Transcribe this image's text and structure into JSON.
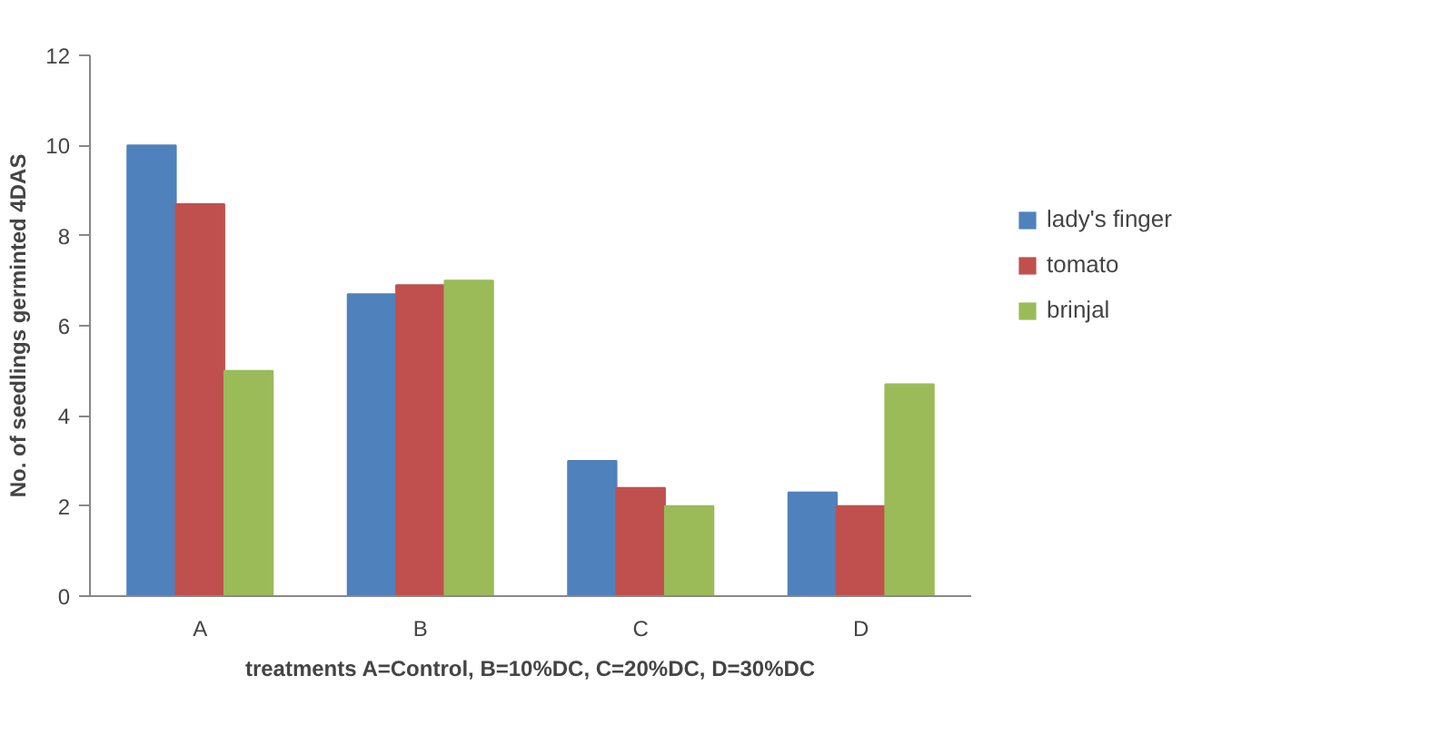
{
  "chart_data": {
    "type": "bar",
    "xlabel": "treatments A=Control, B=10%DC, C=20%DC, D=30%DC",
    "ylabel": "No. of seedlings germinted 4DAS",
    "categories": [
      "A",
      "B",
      "C",
      "D"
    ],
    "series": [
      {
        "name": "lady's finger",
        "color": "#4f81bd",
        "values": [
          10,
          6.7,
          3,
          2.3
        ]
      },
      {
        "name": "tomato",
        "color": "#c0504d",
        "values": [
          8.7,
          6.9,
          2.4,
          2
        ]
      },
      {
        "name": "brinjal",
        "color": "#9bbb59",
        "values": [
          5,
          7,
          2,
          4.7
        ]
      }
    ],
    "ylim": [
      0,
      12
    ],
    "yticks": [
      0,
      2,
      4,
      6,
      8,
      10,
      12
    ],
    "grid": false,
    "legend": "right"
  }
}
